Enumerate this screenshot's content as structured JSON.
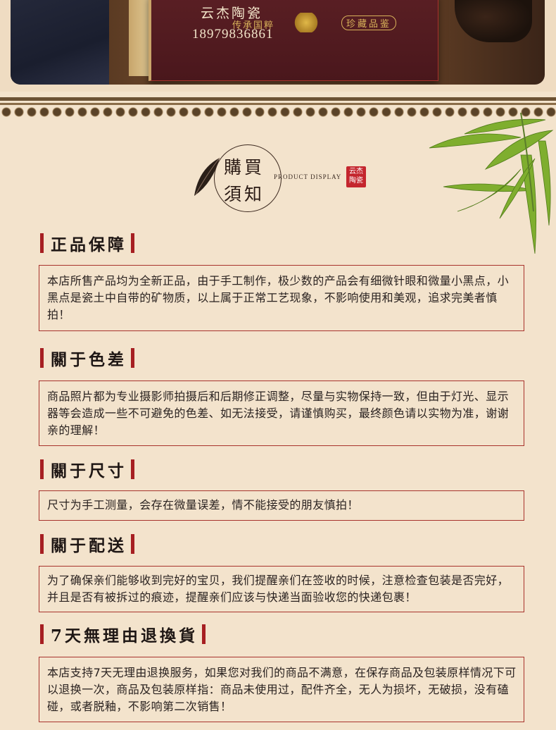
{
  "photo": {
    "brand": "云杰陶瓷",
    "phone": "18979836861",
    "seal_text": "传承国粹",
    "seal_text2": "珍藏品鉴"
  },
  "heading": {
    "line1": "購買",
    "line2": "須知",
    "subtitle": "PRODUCT DISPLAY",
    "seal": "云杰陶瓷"
  },
  "sections": [
    {
      "title": "正品保障",
      "body": "本店所售产品均为全新正品，由于手工制作，极少数的产品会有细微针眼和微量小黑点，小黑点是瓷土中自带的矿物质，以上属于正常工艺现象，不影响使用和美观，追求完美者慎拍！"
    },
    {
      "title": "關于色差",
      "body": "商品照片都为专业摄影师拍摄后和后期修正调整，尽量与实物保持一致，但由于灯光、显示器等会造成一些不可避免的色差、如无法接受，请谨慎购买，最终颜色请以实物为准，谢谢亲的理解！"
    },
    {
      "title": "關于尺寸",
      "body": "尺寸为手工测量，会存在微量误差，情不能接受的朋友慎拍！"
    },
    {
      "title": "關于配送",
      "body": "为了确保亲们能够收到完好的宝贝，我们提醒亲们在签收的时候，注意检查包装是否完好，并且是否有被拆过的痕迹，提醒亲们应该与快递当面验收您的快递包裹！"
    },
    {
      "title": "7天無理由退換貨",
      "body": "本店支持7天无理由退换服务，如果您对我们的商品不满意，在保存商品及包装原样情况下可以退换一次，商品及包装原样指：商品未使用过，配件齐全，无人为损坏，无破损，没有磕碰，或者脱釉，不影响第二次销售！"
    }
  ],
  "colors": {
    "background": "#f3e3cc",
    "accent_red": "#a61f22",
    "border_red": "#a8332c"
  }
}
